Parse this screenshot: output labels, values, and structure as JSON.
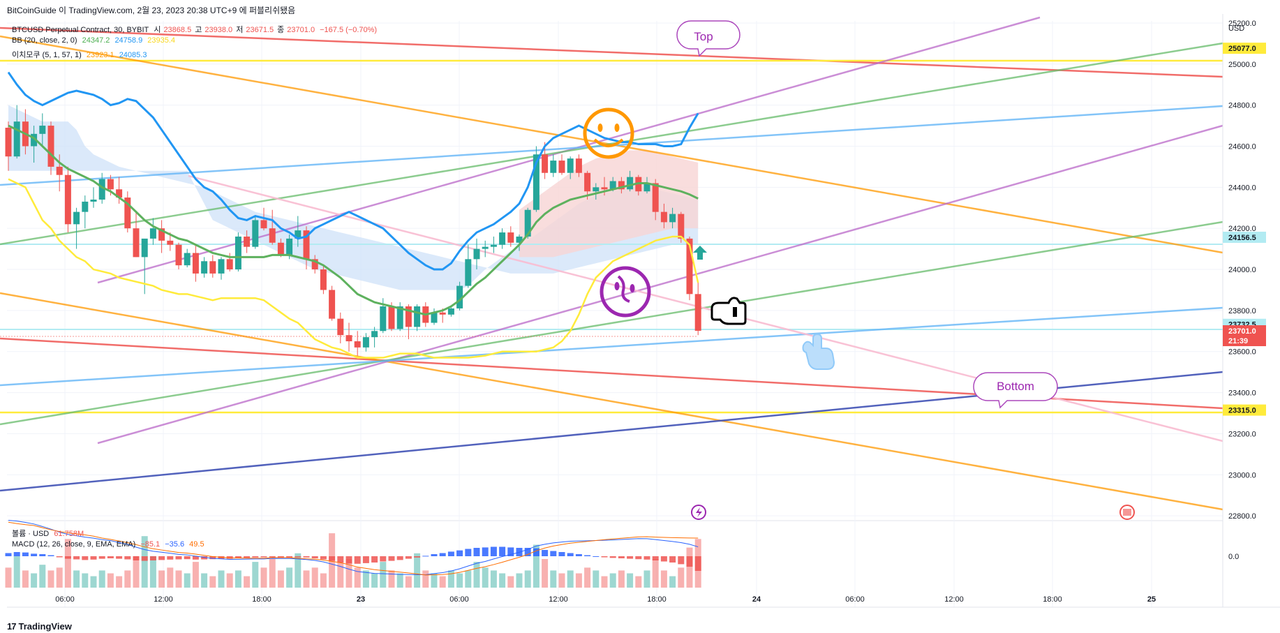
{
  "watermark": "BitCoinGuide 이 TradingView.com, 2월 23, 2023 20:38 UTC+9 에 퍼블리쉬됐음",
  "footer": "TradingView",
  "header": {
    "symbol": "BTCUSD Perpetual Contract, 30, BYBIT",
    "ohlc": {
      "o_label": "시",
      "o": "23868.5",
      "h_label": "고",
      "h": "23938.0",
      "l_label": "저",
      "l": "23671.5",
      "c_label": "종",
      "c": "23701.0",
      "chg": "−167.5 (−0.70%)"
    },
    "bb": {
      "label": "BB (20, close, 2, 0)",
      "basis": "24347.2",
      "upper": "24758.9",
      "lower": "23935.4"
    },
    "ichimoku": {
      "label": "이치모쿠 (5, 1, 57, 1)",
      "a": "23923.1",
      "b": "24085.3"
    },
    "volume": {
      "label": "볼륨 · USD",
      "value": "61.758M"
    },
    "macd": {
      "label": "MACD (12, 26, close, 9, EMA, EMA)",
      "hist": "−85.1",
      "macd": "−35.6",
      "signal": "49.5"
    }
  },
  "colors": {
    "up": "#26a69a",
    "down": "#ef5350",
    "bb_basis": "#5eb15e",
    "bb_upper": "#2196f3",
    "bb_lower": "#ffeb3b",
    "cloud": "#cfe2f8",
    "cloud_red": "#f8d4d4",
    "macd_line": "#2962ff",
    "signal_line": "#ff6d00"
  },
  "annotations": {
    "top": "Top",
    "bottom": "Bottom",
    "smile_icon": "smiley-face-icon",
    "sad_icon": "confused-face-icon",
    "hand_icon": "pointing-hand-icon"
  },
  "chart_data": {
    "type": "candlestick",
    "y_axis_unit": "USD",
    "y_ticks": [
      25200,
      25000,
      24800,
      24600,
      24400,
      24200,
      24000,
      23800,
      23600,
      23400,
      23200,
      23000,
      22800
    ],
    "ylim": [
      22780,
      25210
    ],
    "x_ticks": [
      "06:00",
      "12:00",
      "18:00",
      "23",
      "06:00",
      "12:00",
      "18:00",
      "24",
      "06:00",
      "12:00",
      "18:00",
      "25"
    ],
    "price_tags": [
      {
        "value": "25077.0",
        "color": "#ffeb3b",
        "text_color": "#131722"
      },
      {
        "value": "24156.5",
        "color": "#b2ebf2",
        "text_color": "#131722"
      },
      {
        "value": "23732.5",
        "color": "#b2ebf2",
        "text_color": "#131722"
      },
      {
        "value": "23701.0",
        "color": "#ef5350",
        "text_color": "#ffffff",
        "sub": "21:39"
      },
      {
        "value": "23315.0",
        "color": "#ffeb3b",
        "text_color": "#131722"
      }
    ],
    "macd_zero_label": "0.0",
    "candles": [
      [
        24690,
        24720,
        24480,
        24550
      ],
      [
        24550,
        24800,
        24540,
        24720
      ],
      [
        24720,
        24780,
        24560,
        24600
      ],
      [
        24600,
        24700,
        24520,
        24660
      ],
      [
        24660,
        24760,
        24600,
        24700
      ],
      [
        24700,
        24720,
        24460,
        24500
      ],
      [
        24500,
        24560,
        24380,
        24460
      ],
      [
        24460,
        24500,
        24180,
        24220
      ],
      [
        24220,
        24300,
        24100,
        24280
      ],
      [
        24280,
        24360,
        24200,
        24330
      ],
      [
        24330,
        24400,
        24300,
        24340
      ],
      [
        24340,
        24470,
        24320,
        24440
      ],
      [
        24440,
        24460,
        24360,
        24390
      ],
      [
        24390,
        24450,
        24320,
        24350
      ],
      [
        24350,
        24380,
        24180,
        24200
      ],
      [
        24200,
        24280,
        24060,
        24060
      ],
      [
        24060,
        24140,
        23880,
        24150
      ],
      [
        24150,
        24250,
        24120,
        24200
      ],
      [
        24200,
        24240,
        24080,
        24140
      ],
      [
        24140,
        24180,
        24090,
        24120
      ],
      [
        24120,
        24130,
        24000,
        24020
      ],
      [
        24020,
        24100,
        24010,
        24080
      ],
      [
        24080,
        24120,
        23940,
        23980
      ],
      [
        23980,
        24060,
        23960,
        24040
      ],
      [
        24040,
        24070,
        23960,
        23980
      ],
      [
        23980,
        24060,
        23950,
        24050
      ],
      [
        24050,
        24080,
        23990,
        24000
      ],
      [
        24000,
        24180,
        23990,
        24160
      ],
      [
        24160,
        24190,
        24080,
        24110
      ],
      [
        24110,
        24260,
        24100,
        24240
      ],
      [
        24240,
        24300,
        24190,
        24200
      ],
      [
        24200,
        24290,
        24120,
        24130
      ],
      [
        24130,
        24150,
        24060,
        24070
      ],
      [
        24070,
        24170,
        24050,
        24150
      ],
      [
        24150,
        24260,
        24110,
        24190
      ],
      [
        24190,
        24210,
        24000,
        24050
      ],
      [
        24050,
        24070,
        23980,
        24000
      ],
      [
        24000,
        24020,
        23880,
        23900
      ],
      [
        23900,
        23920,
        23750,
        23760
      ],
      [
        23760,
        23790,
        23640,
        23680
      ],
      [
        23680,
        23740,
        23600,
        23650
      ],
      [
        23650,
        23700,
        23580,
        23620
      ],
      [
        23620,
        23690,
        23600,
        23670
      ],
      [
        23670,
        23720,
        23620,
        23700
      ],
      [
        23700,
        23860,
        23690,
        23820
      ],
      [
        23820,
        23840,
        23700,
        23710
      ],
      [
        23710,
        23840,
        23700,
        23820
      ],
      [
        23820,
        23830,
        23660,
        23720
      ],
      [
        23720,
        23830,
        23700,
        23820
      ],
      [
        23820,
        23840,
        23720,
        23740
      ],
      [
        23740,
        23810,
        23730,
        23790
      ],
      [
        23790,
        23810,
        23740,
        23780
      ],
      [
        23780,
        23820,
        23770,
        23810
      ],
      [
        23810,
        23940,
        23800,
        23920
      ],
      [
        23920,
        24120,
        23910,
        24050
      ],
      [
        24050,
        24150,
        24000,
        24100
      ],
      [
        24100,
        24140,
        24060,
        24110
      ],
      [
        24110,
        24160,
        24080,
        24120
      ],
      [
        24120,
        24200,
        24100,
        24180
      ],
      [
        24180,
        24210,
        24110,
        24130
      ],
      [
        24130,
        24170,
        24090,
        24160
      ],
      [
        24160,
        24300,
        24150,
        24290
      ],
      [
        24290,
        24600,
        24280,
        24560
      ],
      [
        24560,
        24620,
        24440,
        24470
      ],
      [
        24470,
        24560,
        24450,
        24530
      ],
      [
        24530,
        24560,
        24460,
        24470
      ],
      [
        24470,
        24550,
        24440,
        24540
      ],
      [
        24540,
        24560,
        24450,
        24470
      ],
      [
        24470,
        24480,
        24340,
        24380
      ],
      [
        24380,
        24420,
        24340,
        24400
      ],
      [
        24400,
        24450,
        24360,
        24390
      ],
      [
        24390,
        24450,
        24380,
        24430
      ],
      [
        24430,
        24450,
        24370,
        24390
      ],
      [
        24390,
        24480,
        24380,
        24450
      ],
      [
        24450,
        24460,
        24360,
        24380
      ],
      [
        24380,
        24450,
        24370,
        24420
      ],
      [
        24420,
        24440,
        24240,
        24280
      ],
      [
        24280,
        24320,
        24200,
        24230
      ],
      [
        24230,
        24300,
        24200,
        24270
      ],
      [
        24270,
        24280,
        24130,
        24150
      ],
      [
        24150,
        24160,
        23850,
        23880
      ],
      [
        23880,
        23940,
        23680,
        23701
      ]
    ],
    "volume": [
      0.35,
      0.55,
      0.3,
      0.25,
      0.4,
      0.3,
      0.35,
      0.85,
      0.3,
      0.25,
      0.2,
      0.3,
      0.25,
      0.2,
      0.3,
      0.55,
      0.9,
      0.55,
      0.3,
      0.35,
      0.3,
      0.25,
      0.45,
      0.25,
      0.2,
      0.3,
      0.25,
      0.3,
      0.2,
      0.45,
      0.35,
      0.5,
      0.3,
      0.35,
      0.6,
      0.3,
      0.35,
      0.25,
      0.95,
      0.45,
      0.5,
      0.35,
      0.3,
      0.25,
      0.45,
      0.3,
      0.25,
      0.2,
      0.6,
      0.3,
      0.25,
      0.2,
      0.3,
      0.25,
      0.3,
      0.45,
      0.35,
      0.3,
      0.25,
      0.2,
      0.25,
      0.3,
      0.75,
      0.5,
      0.3,
      0.25,
      0.3,
      0.25,
      0.35,
      0.3,
      0.2,
      0.25,
      0.3,
      0.25,
      0.2,
      0.3,
      0.5,
      0.3,
      0.2,
      0.35,
      0.7,
      0.85
    ],
    "macd_hist": [
      0.15,
      0.2,
      0.18,
      0.12,
      0.1,
      0.05,
      -0.05,
      -0.12,
      -0.15,
      -0.18,
      -0.16,
      -0.12,
      -0.1,
      -0.12,
      -0.15,
      -0.2,
      -0.22,
      -0.2,
      -0.18,
      -0.16,
      -0.15,
      -0.14,
      -0.16,
      -0.15,
      -0.14,
      -0.13,
      -0.12,
      -0.1,
      -0.08,
      -0.06,
      -0.05,
      -0.06,
      -0.08,
      -0.07,
      -0.05,
      -0.06,
      -0.1,
      -0.15,
      -0.22,
      -0.3,
      -0.35,
      -0.36,
      -0.33,
      -0.3,
      -0.25,
      -0.22,
      -0.18,
      -0.12,
      -0.06,
      0.02,
      0.1,
      0.15,
      0.22,
      0.28,
      0.35,
      0.4,
      0.42,
      0.45,
      0.45,
      0.42,
      0.4,
      0.4,
      0.38,
      0.3,
      0.25,
      0.2,
      0.15,
      0.1,
      0.05,
      0.0,
      -0.05,
      -0.08,
      -0.1,
      -0.12,
      -0.14,
      -0.16,
      -0.2,
      -0.25,
      -0.3,
      -0.38,
      -0.5,
      -0.7
    ],
    "bb_basis": [
      24700,
      24680,
      24660,
      24640,
      24600,
      24560,
      24520,
      24490,
      24470,
      24450,
      24430,
      24400,
      24380,
      24350,
      24320,
      24280,
      24240,
      24210,
      24190,
      24170,
      24150,
      24140,
      24120,
      24100,
      24080,
      24070,
      24060,
      24060,
      24060,
      24060,
      24060,
      24070,
      24070,
      24070,
      24060,
      24050,
      24040,
      24020,
      23990,
      23960,
      23920,
      23880,
      23860,
      23840,
      23830,
      23820,
      23810,
      23800,
      23790,
      23780,
      23790,
      23800,
      23820,
      23850,
      23890,
      23930,
      23960,
      24000,
      24040,
      24080,
      24120,
      24170,
      24230,
      24270,
      24300,
      24320,
      24340,
      24350,
      24360,
      24370,
      24380,
      24390,
      24400,
      24410,
      24420,
      24420,
      24410,
      24400,
      24390,
      24380,
      24365,
      24345
    ],
    "bb_upper": [
      24960,
      24900,
      24850,
      24820,
      24800,
      24820,
      24840,
      24860,
      24870,
      24860,
      24850,
      24830,
      24800,
      24810,
      24830,
      24820,
      24780,
      24740,
      24680,
      24620,
      24560,
      24500,
      24440,
      24400,
      24380,
      24340,
      24290,
      24250,
      24240,
      24260,
      24250,
      24240,
      24200,
      24180,
      24150,
      24160,
      24200,
      24220,
      24240,
      24260,
      24280,
      24260,
      24240,
      24220,
      24200,
      24160,
      24120,
      24080,
      24050,
      24020,
      24000,
      24000,
      24030,
      24090,
      24140,
      24180,
      24200,
      24220,
      24250,
      24280,
      24320,
      24400,
      24520,
      24600,
      24640,
      24660,
      24680,
      24700,
      24680,
      24660,
      24640,
      24630,
      24620,
      24620,
      24610,
      24610,
      24610,
      24600,
      24600,
      24610,
      24690,
      24760
    ],
    "bb_lower": [
      24440,
      24420,
      24400,
      24320,
      24240,
      24200,
      24140,
      24100,
      24060,
      24040,
      24000,
      23990,
      23980,
      23960,
      23950,
      23940,
      23930,
      23920,
      23900,
      23890,
      23880,
      23880,
      23870,
      23860,
      23850,
      23860,
      23860,
      23860,
      23860,
      23860,
      23850,
      23820,
      23790,
      23760,
      23740,
      23700,
      23660,
      23640,
      23620,
      23610,
      23590,
      23570,
      23570,
      23570,
      23570,
      23580,
      23590,
      23590,
      23590,
      23580,
      23570,
      23570,
      23570,
      23570,
      23570,
      23575,
      23580,
      23590,
      23600,
      23600,
      23600,
      23600,
      23600,
      23610,
      23620,
      23650,
      23700,
      23780,
      23880,
      23960,
      24000,
      24040,
      24060,
      24080,
      24100,
      24120,
      24140,
      24150,
      24160,
      24160,
      24120,
      23935
    ],
    "cloud_top": [
      24800,
      24780,
      24760,
      24740,
      24720,
      24720,
      24720,
      24720,
      24680,
      24600,
      24560,
      24540,
      24520,
      24500,
      24490,
      24480,
      24470,
      24460,
      24450,
      24440,
      24430,
      24420,
      24410,
      24400,
      24380,
      24360,
      24340,
      24320,
      24300,
      24280,
      24270,
      24260,
      24250,
      24240,
      24230,
      24220,
      24210,
      24200,
      24190,
      24180,
      24170,
      24160,
      24150,
      24140,
      24130,
      24120,
      24110,
      24100,
      24090,
      24080,
      24070,
      24060,
      24050,
      24040,
      24030,
      24020,
      24010,
      24000,
      23990,
      23980,
      23980,
      23980,
      23980,
      23980,
      23980,
      23990,
      24000,
      24010,
      24020,
      24030,
      24040,
      24050,
      24060,
      24070,
      24080,
      24090,
      24100,
      24110,
      24120,
      24120,
      24120,
      24120
    ],
    "cloud_bottom": [
      24480,
      24480,
      24480,
      24480,
      24480,
      24480,
      24480,
      24480,
      24480,
      24480,
      24480,
      24480,
      24480,
      24480,
      24480,
      24480,
      24480,
      24480,
      24480,
      24480,
      24480,
      24480,
      24400,
      24320,
      24240,
      24220,
      24200,
      24180,
      24160,
      24140,
      24120,
      24100,
      24080,
      24060,
      24040,
      24020,
      24000,
      23990,
      23980,
      23970,
      23960,
      23950,
      23940,
      23930,
      23920,
      23910,
      23900,
      23900,
      23900,
      23900,
      23900,
      23900,
      23900,
      23900,
      23920,
      23960,
      24000,
      24030,
      24060,
      24090,
      24110,
      24140,
      24170,
      24200,
      24230,
      24260,
      24290,
      24320,
      24340,
      24360,
      24370,
      24380,
      24390,
      24400,
      24400,
      24400,
      24390,
      24380,
      24370,
      24360,
      24350,
      24340
    ]
  }
}
